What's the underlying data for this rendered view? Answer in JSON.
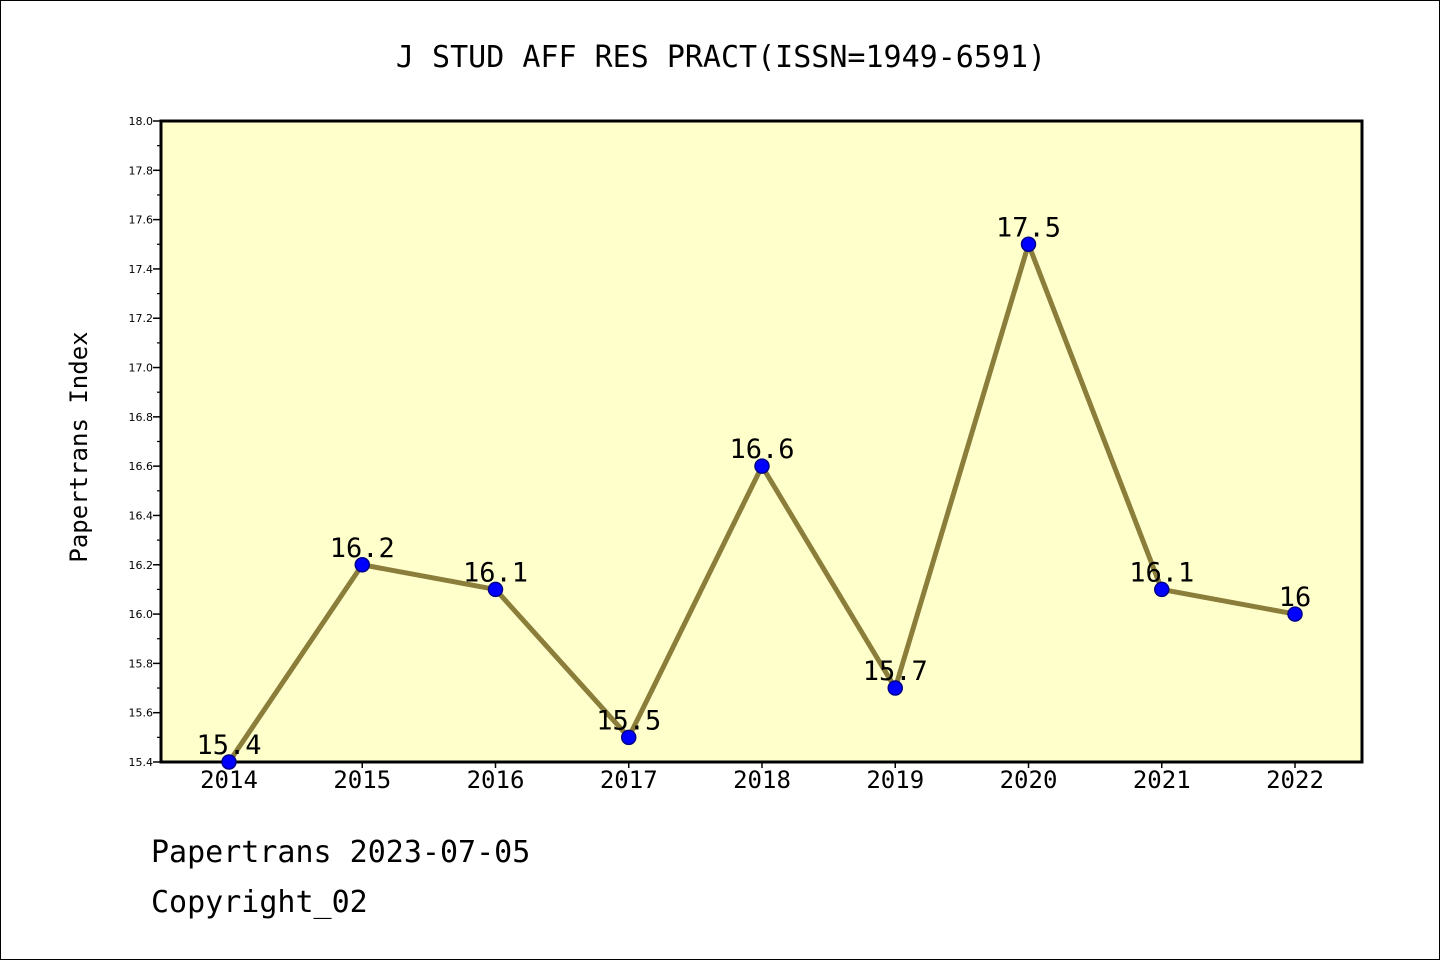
{
  "chart_data": {
    "type": "line",
    "title": "J STUD AFF RES PRACT(ISSN=1949-6591)",
    "xlabel": "",
    "ylabel": "Papertrans Index",
    "categories": [
      "2014",
      "2015",
      "2016",
      "2017",
      "2018",
      "2019",
      "2020",
      "2021",
      "2022"
    ],
    "values": [
      15.4,
      16.2,
      16.1,
      15.5,
      16.6,
      15.7,
      17.5,
      16.1,
      16.0
    ],
    "data_labels": [
      "15.4",
      "16.2",
      "16.1",
      "15.5",
      "16.6",
      "15.7",
      "17.5",
      "16.1",
      "16"
    ],
    "ylim": [
      15.4,
      18.0
    ],
    "yticks": [
      "15.4",
      "15.6",
      "15.8",
      "16.0",
      "16.2",
      "16.4",
      "16.6",
      "16.8",
      "17.0",
      "17.2",
      "17.4",
      "17.6",
      "17.8",
      "18.0"
    ],
    "grid": false,
    "legend": "none",
    "colors": {
      "plot_background": "#ffffcc",
      "line": "#8b7d3a",
      "marker_fill": "#0000ff",
      "marker_edge": "#00008b",
      "axis": "#000000"
    }
  },
  "footer": {
    "line1": "Papertrans 2023-07-05",
    "line2": "Copyright_02"
  }
}
